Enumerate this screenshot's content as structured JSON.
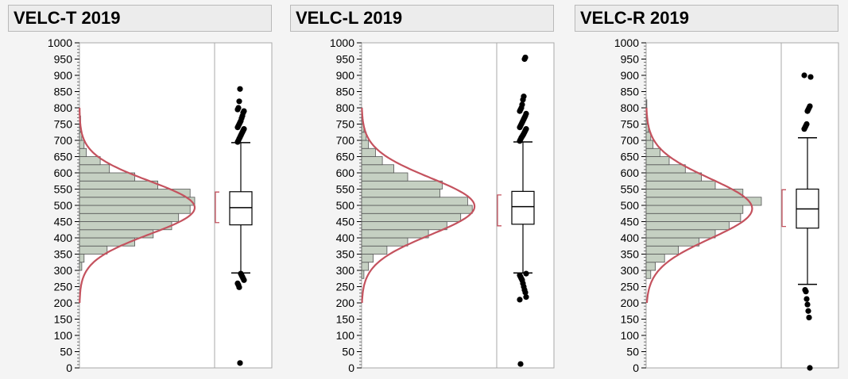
{
  "colors": {
    "bar_fill": "#c5d0c2",
    "bar_stroke": "#555555",
    "curve": "#c4525e",
    "frame": "#a8a8a8",
    "points": "#000000"
  },
  "chart_data": [
    {
      "type": "histogram-boxplot",
      "title": "VELC-T 2019",
      "orientation": "horizontal-bars",
      "ylim": [
        0,
        1000
      ],
      "y_ticks": [
        "0",
        "50",
        "100",
        "150",
        "200",
        "250",
        "300",
        "350",
        "400",
        "450",
        "500",
        "550",
        "600",
        "650",
        "700",
        "750",
        "800",
        "850",
        "900",
        "950",
        "1000"
      ],
      "bin_width": 25,
      "bins": [
        {
          "lo": 300,
          "hi": 325,
          "count": 1
        },
        {
          "lo": 325,
          "hi": 350,
          "count": 2
        },
        {
          "lo": 350,
          "hi": 375,
          "count": 12
        },
        {
          "lo": 375,
          "hi": 400,
          "count": 24
        },
        {
          "lo": 400,
          "hi": 425,
          "count": 32
        },
        {
          "lo": 425,
          "hi": 450,
          "count": 40
        },
        {
          "lo": 450,
          "hi": 475,
          "count": 43
        },
        {
          "lo": 475,
          "hi": 500,
          "count": 48
        },
        {
          "lo": 500,
          "hi": 525,
          "count": 50
        },
        {
          "lo": 525,
          "hi": 550,
          "count": 48
        },
        {
          "lo": 550,
          "hi": 575,
          "count": 34
        },
        {
          "lo": 575,
          "hi": 600,
          "count": 24
        },
        {
          "lo": 600,
          "hi": 625,
          "count": 13
        },
        {
          "lo": 625,
          "hi": 650,
          "count": 9
        },
        {
          "lo": 650,
          "hi": 675,
          "count": 3
        },
        {
          "lo": 675,
          "hi": 700,
          "count": 2
        },
        {
          "lo": 700,
          "hi": 725,
          "count": 1
        },
        {
          "lo": 725,
          "hi": 750,
          "count": 0.5
        },
        {
          "lo": 750,
          "hi": 775,
          "count": 0.5
        }
      ],
      "count_max": 50,
      "normal_fit": {
        "mean": 493,
        "sd": 82,
        "peak": 50
      },
      "box": {
        "q1": 440,
        "median": 493,
        "q3": 542,
        "whisker_low": 292,
        "whisker_high": 693
      },
      "mean_ci_bracket": [
        447,
        541
      ],
      "outliers": [
        695,
        700,
        705,
        710,
        715,
        720,
        725,
        730,
        735,
        740,
        745,
        750,
        755,
        760,
        768,
        775,
        785,
        790,
        795,
        800,
        820,
        858,
        290,
        285,
        280,
        275,
        270,
        260,
        255,
        248,
        15
      ]
    },
    {
      "type": "histogram-boxplot",
      "title": "VELC-L 2019",
      "orientation": "horizontal-bars",
      "ylim": [
        0,
        1000
      ],
      "y_ticks": [
        "0",
        "50",
        "100",
        "150",
        "200",
        "250",
        "300",
        "350",
        "400",
        "450",
        "500",
        "550",
        "600",
        "650",
        "700",
        "750",
        "800",
        "850",
        "900",
        "950",
        "1000"
      ],
      "bin_width": 25,
      "bins": [
        {
          "lo": 275,
          "hi": 300,
          "count": 1
        },
        {
          "lo": 300,
          "hi": 325,
          "count": 3
        },
        {
          "lo": 325,
          "hi": 350,
          "count": 5
        },
        {
          "lo": 350,
          "hi": 375,
          "count": 11
        },
        {
          "lo": 375,
          "hi": 400,
          "count": 20
        },
        {
          "lo": 400,
          "hi": 425,
          "count": 29
        },
        {
          "lo": 425,
          "hi": 450,
          "count": 37
        },
        {
          "lo": 450,
          "hi": 475,
          "count": 43
        },
        {
          "lo": 475,
          "hi": 500,
          "count": 48
        },
        {
          "lo": 500,
          "hi": 525,
          "count": 46
        },
        {
          "lo": 525,
          "hi": 550,
          "count": 34
        },
        {
          "lo": 550,
          "hi": 575,
          "count": 35
        },
        {
          "lo": 575,
          "hi": 600,
          "count": 20
        },
        {
          "lo": 600,
          "hi": 625,
          "count": 14
        },
        {
          "lo": 625,
          "hi": 650,
          "count": 9
        },
        {
          "lo": 650,
          "hi": 675,
          "count": 6
        },
        {
          "lo": 675,
          "hi": 700,
          "count": 3
        },
        {
          "lo": 700,
          "hi": 725,
          "count": 2
        },
        {
          "lo": 725,
          "hi": 750,
          "count": 1
        },
        {
          "lo": 750,
          "hi": 775,
          "count": 0.5
        },
        {
          "lo": 775,
          "hi": 800,
          "count": 0.3
        }
      ],
      "count_max": 50,
      "normal_fit": {
        "mean": 497,
        "sd": 88,
        "peak": 49
      },
      "box": {
        "q1": 442,
        "median": 496,
        "q3": 543,
        "whisker_low": 292,
        "whisker_high": 695
      },
      "mean_ci_bracket": [
        437,
        532
      ],
      "outliers": [
        698,
        703,
        708,
        712,
        716,
        720,
        725,
        730,
        735,
        740,
        745,
        750,
        755,
        760,
        765,
        770,
        775,
        782,
        790,
        795,
        800,
        810,
        825,
        835,
        950,
        955,
        290,
        285,
        280,
        275,
        270,
        260,
        250,
        240,
        232,
        218,
        210,
        12
      ]
    },
    {
      "type": "histogram-boxplot",
      "title": "VELC-R 2019",
      "orientation": "horizontal-bars",
      "ylim": [
        0,
        1000
      ],
      "y_ticks": [
        "0",
        "50",
        "100",
        "150",
        "200",
        "250",
        "300",
        "350",
        "400",
        "450",
        "500",
        "550",
        "600",
        "650",
        "700",
        "750",
        "800",
        "850",
        "900",
        "950",
        "1000"
      ],
      "bin_width": 25,
      "bins": [
        {
          "lo": 275,
          "hi": 300,
          "count": 2
        },
        {
          "lo": 300,
          "hi": 325,
          "count": 4
        },
        {
          "lo": 325,
          "hi": 350,
          "count": 8
        },
        {
          "lo": 350,
          "hi": 375,
          "count": 14
        },
        {
          "lo": 375,
          "hi": 400,
          "count": 23
        },
        {
          "lo": 400,
          "hi": 425,
          "count": 30
        },
        {
          "lo": 425,
          "hi": 450,
          "count": 36
        },
        {
          "lo": 450,
          "hi": 475,
          "count": 41
        },
        {
          "lo": 475,
          "hi": 500,
          "count": 42
        },
        {
          "lo": 500,
          "hi": 525,
          "count": 50
        },
        {
          "lo": 525,
          "hi": 550,
          "count": 42
        },
        {
          "lo": 550,
          "hi": 575,
          "count": 30
        },
        {
          "lo": 575,
          "hi": 600,
          "count": 24
        },
        {
          "lo": 600,
          "hi": 625,
          "count": 17
        },
        {
          "lo": 625,
          "hi": 650,
          "count": 10
        },
        {
          "lo": 650,
          "hi": 675,
          "count": 6
        },
        {
          "lo": 675,
          "hi": 700,
          "count": 3
        },
        {
          "lo": 700,
          "hi": 725,
          "count": 2
        },
        {
          "lo": 725,
          "hi": 750,
          "count": 1
        },
        {
          "lo": 750,
          "hi": 775,
          "count": 0.5
        },
        {
          "lo": 775,
          "hi": 800,
          "count": 0.3
        },
        {
          "lo": 800,
          "hi": 825,
          "count": 0.3
        }
      ],
      "count_max": 50,
      "normal_fit": {
        "mean": 490,
        "sd": 92,
        "peak": 46
      },
      "box": {
        "q1": 430,
        "median": 489,
        "q3": 550,
        "whisker_low": 257,
        "whisker_high": 708
      },
      "mean_ci_bracket": [
        435,
        548
      ],
      "outliers": [
        735,
        740,
        745,
        750,
        790,
        795,
        800,
        805,
        895,
        900,
        240,
        235,
        212,
        195,
        175,
        155,
        0
      ]
    }
  ]
}
